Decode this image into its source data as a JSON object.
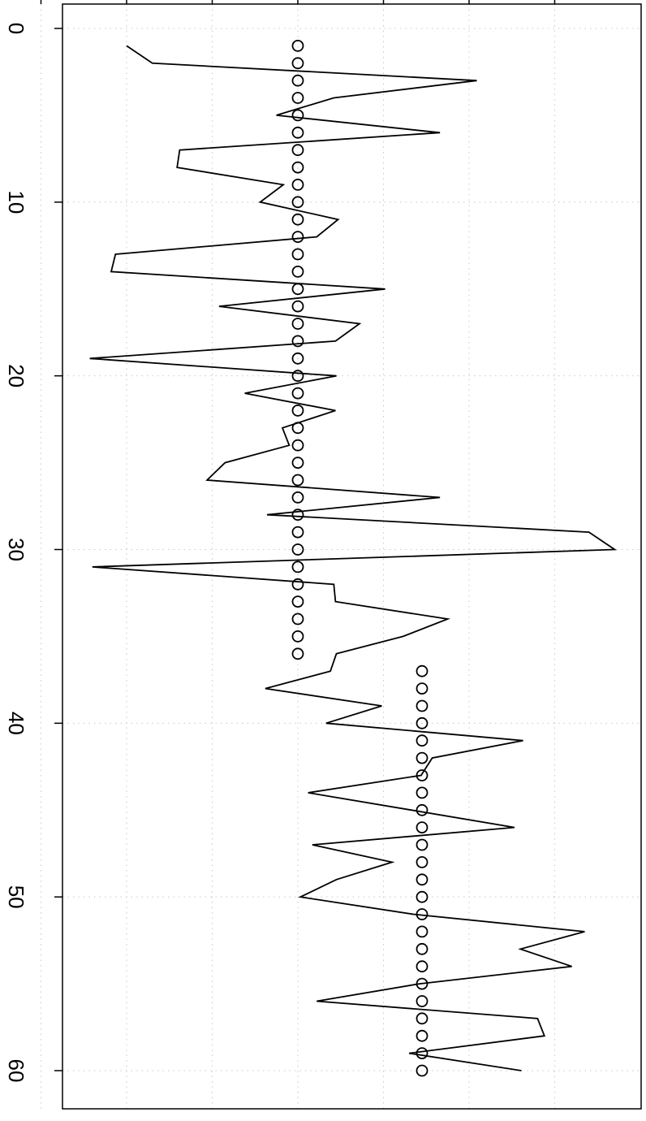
{
  "chart_data": {
    "type": "line",
    "orientation": "rotated",
    "title": "",
    "xlabel": "",
    "ylabel": "",
    "xlim": [
      -1.4,
      61.7
    ],
    "ylim": [
      -3.4,
      3.6
    ],
    "x_ticks": [
      0,
      10,
      20,
      30,
      40,
      50,
      60
    ],
    "x_tick_labels": [
      "0",
      "10",
      "20",
      "30",
      "40",
      "50",
      "60"
    ],
    "y_ticks": [
      -3,
      -2,
      -1,
      0,
      1,
      2,
      3
    ],
    "y_tick_labels": [
      "",
      "",
      "",
      "",
      "",
      "",
      ""
    ],
    "grid": true,
    "series": [
      {
        "style": "line",
        "x": [
          1,
          2,
          3,
          4,
          5,
          6,
          7,
          8,
          9,
          10,
          11,
          12,
          13,
          14,
          15,
          16,
          17,
          18,
          19,
          20,
          21,
          22,
          23,
          24,
          25,
          26,
          27,
          28,
          29,
          30,
          31,
          32,
          33,
          34,
          35,
          36,
          37,
          38,
          39,
          40,
          41,
          42,
          43,
          44,
          45,
          46,
          47,
          48,
          49,
          50,
          51,
          52,
          53,
          54,
          55,
          56,
          57,
          58,
          59,
          60
        ],
        "values": [
          -2.0,
          -1.7,
          2.09,
          0.42,
          -0.25,
          1.66,
          -1.38,
          -1.41,
          -0.17,
          -0.44,
          0.47,
          0.22,
          -2.13,
          -2.18,
          1.02,
          -0.92,
          0.72,
          0.44,
          -2.43,
          0.45,
          -0.62,
          0.44,
          -0.18,
          -0.1,
          -0.85,
          -1.06,
          1.66,
          -0.36,
          3.4,
          3.7,
          -2.4,
          0.42,
          0.44,
          1.75,
          1.23,
          0.45,
          0.38,
          -0.38,
          0.98,
          0.33,
          2.63,
          1.57,
          1.44,
          0.12,
          1.33,
          2.53,
          0.17,
          1.1,
          0.45,
          0.03,
          1.35,
          3.35,
          2.6,
          3.2,
          1.42,
          0.22,
          2.8,
          2.88,
          1.3,
          2.61
        ]
      },
      {
        "style": "points",
        "x": [
          1,
          2,
          3,
          4,
          5,
          6,
          7,
          8,
          9,
          10,
          11,
          12,
          13,
          14,
          15,
          16,
          17,
          18,
          19,
          20,
          21,
          22,
          23,
          24,
          25,
          26,
          27,
          28,
          29,
          30,
          31,
          32,
          33,
          34,
          35,
          36,
          37,
          38,
          39,
          40,
          41,
          42,
          43,
          44,
          45,
          46,
          47,
          48,
          49,
          50,
          51,
          52,
          53,
          54,
          55,
          56,
          57,
          58,
          59,
          60
        ],
        "values": [
          0,
          0,
          0,
          0,
          0,
          0,
          0,
          0,
          0,
          0,
          0,
          0,
          0,
          0,
          0,
          0,
          0,
          0,
          0,
          0,
          0,
          0,
          0,
          0,
          0,
          0,
          0,
          0,
          0,
          0,
          0,
          0,
          0,
          0,
          0,
          0,
          1.45,
          1.45,
          1.45,
          1.45,
          1.45,
          1.45,
          1.45,
          1.45,
          1.45,
          1.45,
          1.45,
          1.45,
          1.45,
          1.45,
          1.45,
          1.45,
          1.45,
          1.45,
          1.45,
          1.45,
          1.45,
          1.45,
          1.45,
          1.45
        ]
      }
    ]
  }
}
